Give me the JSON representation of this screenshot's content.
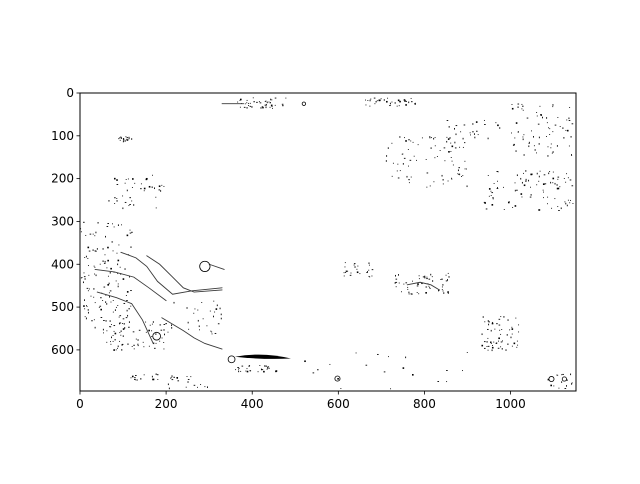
{
  "chart_data": {
    "type": "heatmap",
    "title": "",
    "xlabel": "",
    "ylabel": "",
    "xlim": [
      0,
      1152
    ],
    "ylim": [
      696,
      0
    ],
    "y_axis_inverted": true,
    "grid": false,
    "colormap": "binary",
    "background_value": "white",
    "xticks": [
      0,
      200,
      400,
      600,
      800,
      1000
    ],
    "yticks": [
      0,
      100,
      200,
      300,
      400,
      500,
      600
    ],
    "curves": [
      {
        "points": [
          [
            35,
            412
          ],
          [
            80,
            418
          ],
          [
            125,
            430
          ],
          [
            160,
            455
          ],
          [
            200,
            485
          ]
        ]
      },
      {
        "points": [
          [
            40,
            465
          ],
          [
            85,
            478
          ],
          [
            120,
            492
          ],
          [
            145,
            530
          ],
          [
            170,
            585
          ]
        ]
      },
      {
        "points": [
          [
            95,
            372
          ],
          [
            130,
            385
          ],
          [
            155,
            405
          ],
          [
            180,
            440
          ],
          [
            215,
            470
          ],
          [
            260,
            462
          ],
          [
            330,
            455
          ]
        ]
      },
      {
        "points": [
          [
            155,
            380
          ],
          [
            185,
            400
          ],
          [
            215,
            430
          ],
          [
            240,
            455
          ],
          [
            265,
            465
          ],
          [
            330,
            460
          ]
        ]
      },
      {
        "points": [
          [
            190,
            525
          ],
          [
            240,
            555
          ],
          [
            265,
            572
          ],
          [
            290,
            585
          ],
          [
            330,
            598
          ]
        ]
      },
      {
        "points": [
          [
            300,
            400
          ],
          [
            335,
            412
          ]
        ]
      },
      {
        "points": [
          [
            760,
            448
          ],
          [
            790,
            442
          ],
          [
            815,
            448
          ],
          [
            835,
            460
          ]
        ]
      },
      {
        "points": [
          [
            330,
            25
          ],
          [
            380,
            25
          ]
        ]
      }
    ],
    "circles": [
      {
        "x": 290,
        "y": 405,
        "r": 12
      },
      {
        "x": 178,
        "y": 568,
        "r": 9
      },
      {
        "x": 352,
        "y": 622,
        "r": 8
      },
      {
        "x": 520,
        "y": 25,
        "r": 4
      },
      {
        "x": 598,
        "y": 667,
        "r": 6
      },
      {
        "x": 1095,
        "y": 668,
        "r": 6
      },
      {
        "x": 1125,
        "y": 668,
        "r": 5
      }
    ],
    "blobs": [
      {
        "x0": 360,
        "x1": 490,
        "y": 616,
        "thickness": 12
      }
    ],
    "speckle_regions": [
      {
        "x": [
          85,
          120
        ],
        "y": [
          100,
          112
        ],
        "n": 20
      },
      {
        "x": [
          360,
          480
        ],
        "y": [
          10,
          35
        ],
        "n": 45
      },
      {
        "x": [
          660,
          780
        ],
        "y": [
          10,
          30
        ],
        "n": 35
      },
      {
        "x": [
          710,
          900
        ],
        "y": [
          100,
          220
        ],
        "n": 80
      },
      {
        "x": [
          850,
          980
        ],
        "y": [
          60,
          110
        ],
        "n": 25
      },
      {
        "x": [
          1000,
          1145
        ],
        "y": [
          20,
          150
        ],
        "n": 70
      },
      {
        "x": [
          930,
          1145
        ],
        "y": [
          180,
          275
        ],
        "n": 90
      },
      {
        "x": [
          60,
          200
        ],
        "y": [
          190,
          270
        ],
        "n": 40
      },
      {
        "x": [
          0,
          120
        ],
        "y": [
          300,
          560
        ],
        "n": 140
      },
      {
        "x": [
          60,
          200
        ],
        "y": [
          530,
          600
        ],
        "n": 60
      },
      {
        "x": [
          200,
          330
        ],
        "y": [
          480,
          570
        ],
        "n": 30
      },
      {
        "x": [
          610,
          680
        ],
        "y": [
          390,
          430
        ],
        "n": 25
      },
      {
        "x": [
          730,
          860
        ],
        "y": [
          420,
          470
        ],
        "n": 55
      },
      {
        "x": [
          930,
          1020
        ],
        "y": [
          520,
          600
        ],
        "n": 60
      },
      {
        "x": [
          110,
          230
        ],
        "y": [
          655,
          670
        ],
        "n": 20
      },
      {
        "x": [
          200,
          320
        ],
        "y": [
          660,
          690
        ],
        "n": 15
      },
      {
        "x": [
          360,
          460
        ],
        "y": [
          635,
          650
        ],
        "n": 30
      },
      {
        "x": [
          1080,
          1145
        ],
        "y": [
          650,
          690
        ],
        "n": 15
      },
      {
        "x": [
          520,
          900
        ],
        "y": [
          600,
          690
        ],
        "n": 20
      }
    ]
  }
}
